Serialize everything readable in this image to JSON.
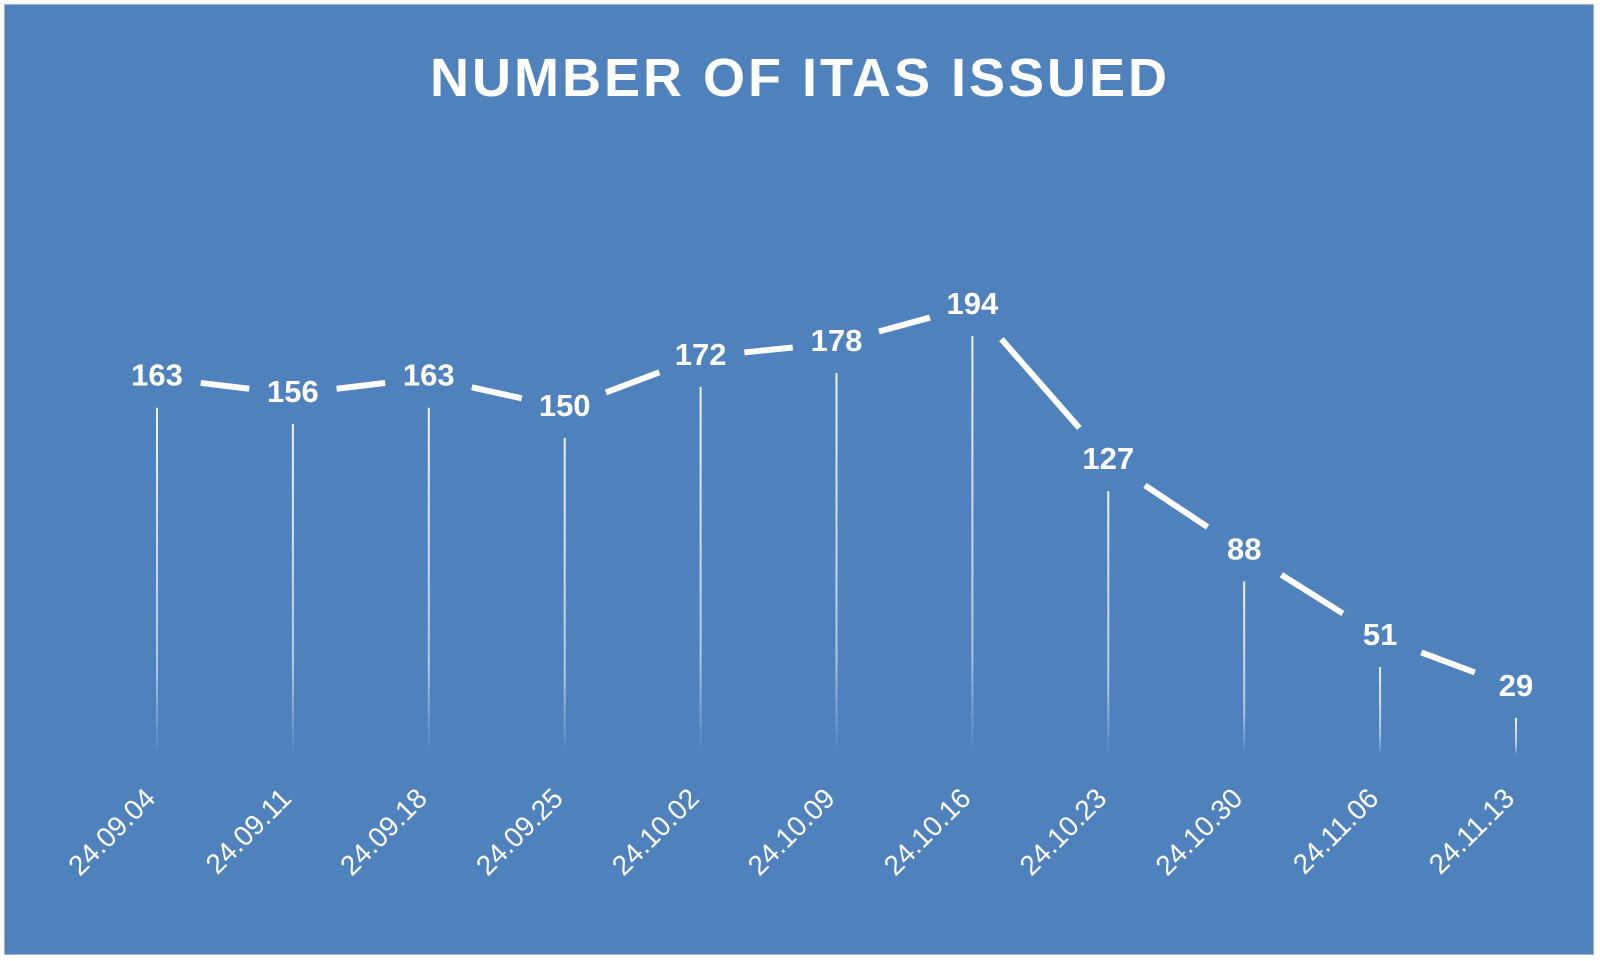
{
  "chart_data": {
    "type": "line",
    "title": "NUMBER OF ITAS ISSUED",
    "categories": [
      "24.09.04",
      "24.09.11",
      "24.09.18",
      "24.09.25",
      "24.10.02",
      "24.10.09",
      "24.10.16",
      "24.10.23",
      "24.10.30",
      "24.11.06",
      "24.11.13"
    ],
    "values": [
      163,
      156,
      163,
      150,
      172,
      178,
      194,
      127,
      88,
      51,
      29
    ],
    "xlabel": "",
    "ylabel": "",
    "ylim": [
      0,
      194
    ],
    "grid": false,
    "legend": "none",
    "drop_lines": true,
    "data_labels": true,
    "colors": {
      "background": "#4f81bd",
      "line": "#ffffff",
      "text": "#ffffff"
    }
  }
}
